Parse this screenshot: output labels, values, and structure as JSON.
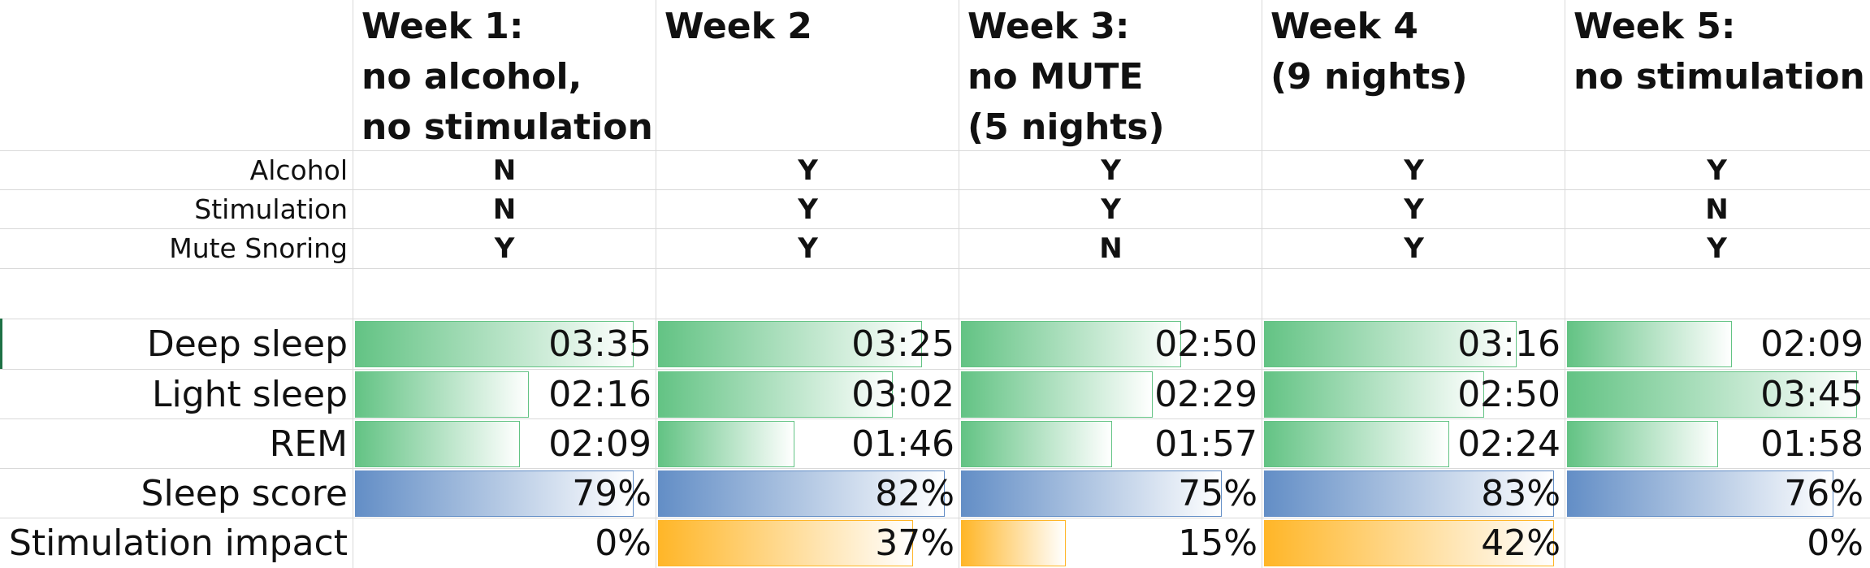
{
  "weeks": [
    {
      "header": [
        "Week 1:",
        "no alcohol,",
        "no stimulation"
      ],
      "alcohol": "N",
      "stimulation": "N",
      "mute": "Y",
      "deep": "03:35",
      "light": "02:16",
      "rem": "02:09",
      "score": "79%",
      "impact": "0%"
    },
    {
      "header": [
        "Week 2"
      ],
      "alcohol": "Y",
      "stimulation": "Y",
      "mute": "Y",
      "deep": "03:25",
      "light": "03:02",
      "rem": "01:46",
      "score": "82%",
      "impact": "37%"
    },
    {
      "header": [
        "Week 3:",
        "no MUTE",
        "(5 nights)"
      ],
      "alcohol": "Y",
      "stimulation": "Y",
      "mute": "N",
      "deep": "02:50",
      "light": "02:29",
      "rem": "01:57",
      "score": "75%",
      "impact": "15%"
    },
    {
      "header": [
        "Week 4",
        "(9 nights)"
      ],
      "alcohol": "Y",
      "stimulation": "Y",
      "mute": "Y",
      "deep": "03:16",
      "light": "02:50",
      "rem": "02:24",
      "score": "83%",
      "impact": "42%"
    },
    {
      "header": [
        "Week 5:",
        "no stimulation"
      ],
      "alcohol": "Y",
      "stimulation": "N",
      "mute": "Y",
      "deep": "02:09",
      "light": "03:45",
      "rem": "01:58",
      "score": "76%",
      "impact": "0%"
    }
  ],
  "labels": {
    "alcohol": "Alcohol",
    "stimulation": "Stimulation",
    "mute": "Mute Snoring",
    "deep": "Deep sleep",
    "light": "Light sleep",
    "rem": "REM",
    "score": "Sleep score",
    "impact": "Stimulation impact"
  },
  "bar_fractions": {
    "deep": [
      0.96,
      0.91,
      0.76,
      0.87,
      0.57
    ],
    "light": [
      0.6,
      0.81,
      0.66,
      0.76,
      1.0
    ],
    "rem": [
      0.57,
      0.47,
      0.52,
      0.64,
      0.52
    ],
    "score": [
      0.96,
      0.99,
      0.9,
      1.0,
      0.92
    ],
    "impact": [
      0.0,
      0.88,
      0.36,
      1.0,
      0.0
    ]
  },
  "colors": {
    "sleep_bar": "#63c384",
    "score_bar": "#638ec6",
    "impact_bar": "#ffb628",
    "gridline": "#d9d9d9"
  }
}
